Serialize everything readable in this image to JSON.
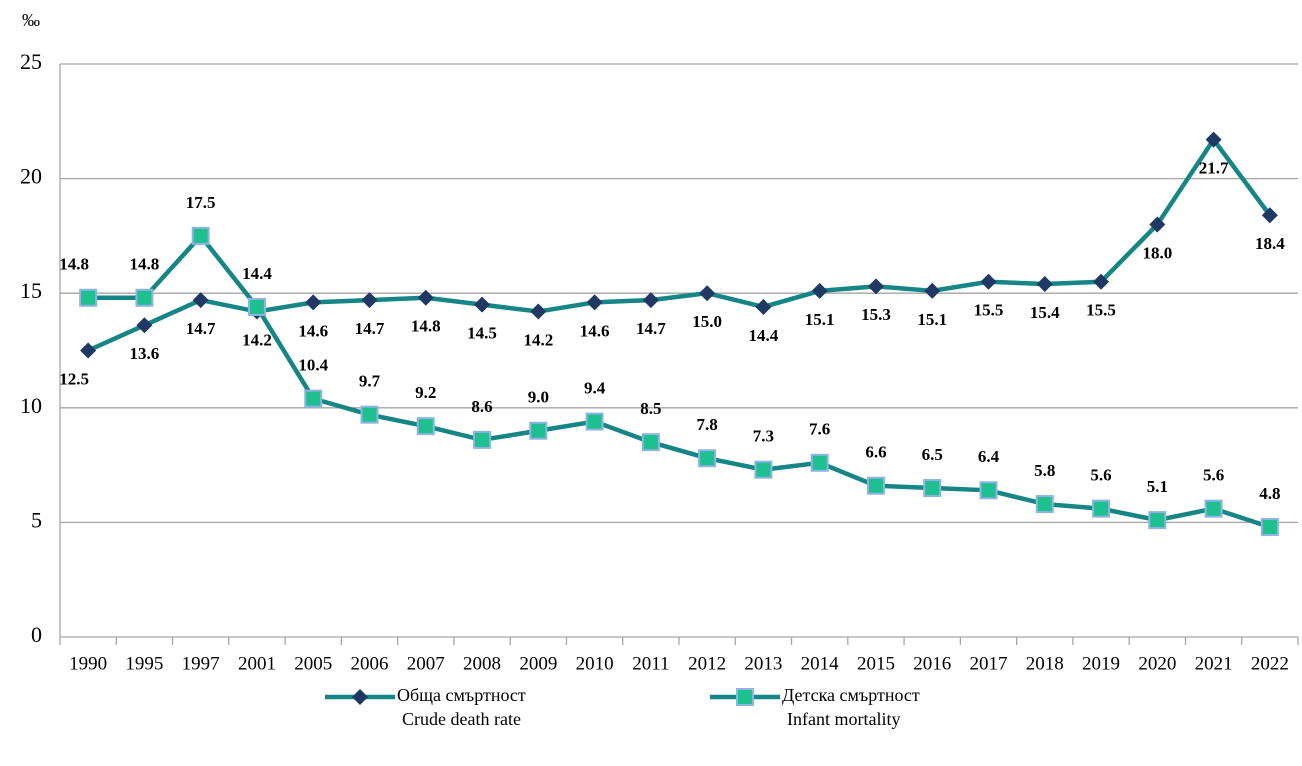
{
  "chart_data": {
    "type": "line",
    "y_label": "‰",
    "categories": [
      "1990",
      "1995",
      "1997",
      "2001",
      "2005",
      "2006",
      "2007",
      "2008",
      "2009",
      "2010",
      "2011",
      "2012",
      "2013",
      "2014",
      "2015",
      "2016",
      "2017",
      "2018",
      "2019",
      "2020",
      "2021",
      "2022"
    ],
    "ylim": [
      0,
      25
    ],
    "yticks": [
      0,
      5,
      10,
      15,
      20,
      25
    ],
    "grid": true,
    "legend": "bottom",
    "series": [
      {
        "name": "Обща смъртност",
        "name_en": "Crude death rate",
        "color": "#168585",
        "marker": "diamond",
        "marker_color": "#1f3864",
        "values": [
          12.5,
          13.6,
          14.7,
          14.2,
          14.6,
          14.7,
          14.8,
          14.5,
          14.2,
          14.6,
          14.7,
          15.0,
          14.4,
          15.1,
          15.3,
          15.1,
          15.5,
          15.4,
          15.5,
          18.0,
          21.7,
          18.4
        ],
        "value_labels": [
          "12.5",
          "13.6",
          "14.7",
          "14.2",
          "14.6",
          "14.7",
          "14.8",
          "14.5",
          "14.2",
          "14.6",
          "14.7",
          "15.0",
          "14.4",
          "15.1",
          "15.3",
          "15.1",
          "15.5",
          "15.4",
          "15.5",
          "18.0",
          "21.7",
          "18.4"
        ]
      },
      {
        "name": "Детска смъртност",
        "name_en": "Infant mortality",
        "color": "#168585",
        "marker": "square",
        "marker_color": "#1fc08f",
        "values": [
          14.8,
          14.8,
          17.5,
          14.4,
          10.4,
          9.7,
          9.2,
          8.6,
          9.0,
          9.4,
          8.5,
          7.8,
          7.3,
          7.6,
          6.6,
          6.5,
          6.4,
          5.8,
          5.6,
          5.1,
          5.6,
          4.8
        ],
        "value_labels": [
          "14.8",
          "14.8",
          "17.5",
          "14.4",
          "10.4",
          "9.7",
          "9.2",
          "8.6",
          "9.0",
          "9.4",
          "8.5",
          "7.8",
          "7.3",
          "7.6",
          "6.6",
          "6.5",
          "6.4",
          "5.8",
          "5.6",
          "5.1",
          "5.6",
          "4.8"
        ]
      }
    ]
  }
}
